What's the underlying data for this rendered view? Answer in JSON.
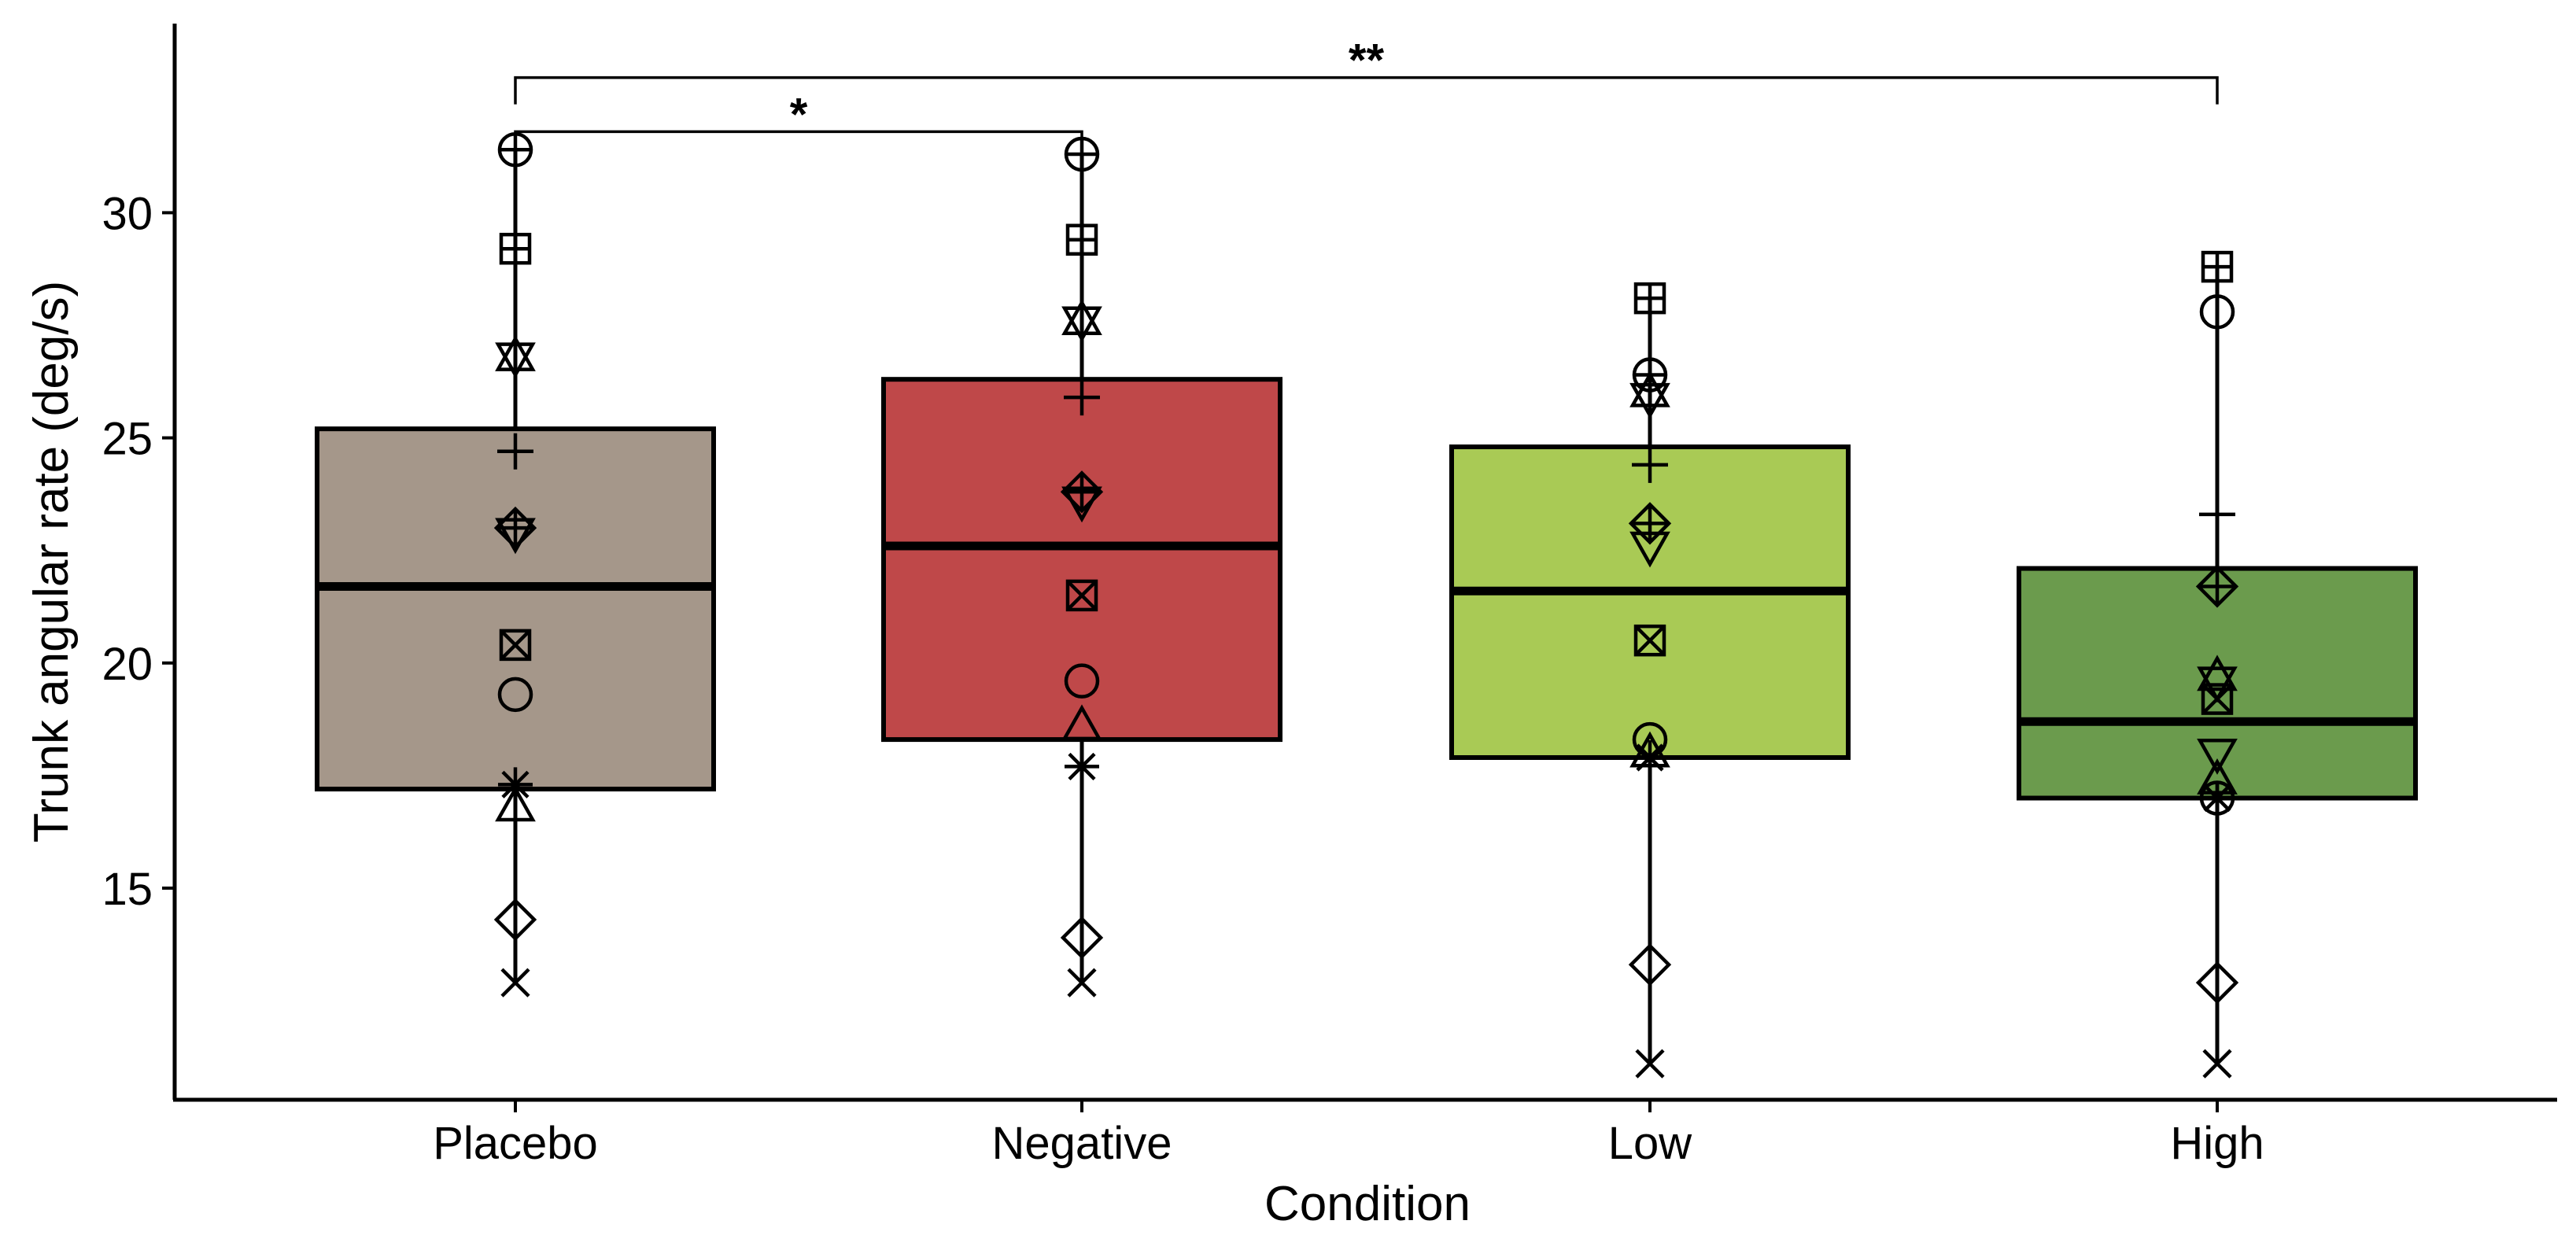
{
  "chart_data": {
    "type": "box",
    "title": "",
    "xlabel": "Condition",
    "ylabel": "Trunk angular rate (deg/s)",
    "ylim": [
      10.3,
      34.2
    ],
    "yticks": [
      15,
      20,
      25,
      30
    ],
    "categories": [
      "Placebo",
      "Negative",
      "Low",
      "High"
    ],
    "colors": [
      "#A5978A",
      "#BF4849",
      "#A9CA55",
      "#6B9B4D"
    ],
    "boxes": [
      {
        "name": "Placebo",
        "whisker_low": 12.9,
        "q1": 17.2,
        "median": 21.7,
        "q3": 25.2,
        "whisker_high": 31.4
      },
      {
        "name": "Negative",
        "whisker_low": 12.9,
        "q1": 18.3,
        "median": 22.6,
        "q3": 26.3,
        "whisker_high": 31.3
      },
      {
        "name": "Low",
        "whisker_low": 11.1,
        "q1": 17.9,
        "median": 21.6,
        "q3": 24.8,
        "whisker_high": 28.1
      },
      {
        "name": "High",
        "whisker_low": 11.1,
        "q1": 17.0,
        "median": 18.7,
        "q3": 22.1,
        "whisker_high": 28.8
      }
    ],
    "participants": [
      {
        "marker": "circle-plus",
        "values": [
          31.4,
          31.3,
          26.4,
          17.0
        ]
      },
      {
        "marker": "square-plus",
        "values": [
          29.2,
          29.4,
          28.1,
          28.8
        ]
      },
      {
        "marker": "triangle-up",
        "values": [
          26.8,
          27.6,
          26.0,
          19.7
        ]
      },
      {
        "marker": "triangle-down",
        "values": [
          26.8,
          27.6,
          25.9,
          19.6
        ]
      },
      {
        "marker": "plus",
        "values": [
          24.7,
          25.9,
          24.4,
          23.3
        ]
      },
      {
        "marker": "diamond-plus",
        "values": [
          23.0,
          23.8,
          23.1,
          21.7
        ]
      },
      {
        "marker": "triangle-down",
        "values": [
          22.9,
          23.6,
          22.6,
          18.0
        ]
      },
      {
        "marker": "square-x",
        "values": [
          20.4,
          21.5,
          20.5,
          19.2
        ]
      },
      {
        "marker": "circle",
        "values": [
          19.3,
          19.6,
          18.3,
          27.8
        ]
      },
      {
        "marker": "triangle-up",
        "values": [
          16.8,
          18.6,
          18.0,
          17.4
        ]
      },
      {
        "marker": "asterisk",
        "values": [
          17.3,
          17.7,
          17.9,
          17.0
        ]
      },
      {
        "marker": "diamond",
        "values": [
          14.3,
          13.9,
          13.3,
          12.9
        ]
      },
      {
        "marker": "x",
        "values": [
          12.9,
          12.9,
          11.1,
          11.1
        ]
      }
    ],
    "significance": [
      {
        "from": "Placebo",
        "to": "Negative",
        "y": 31.8,
        "label": "*"
      },
      {
        "from": "Placebo",
        "to": "High",
        "y": 33.0,
        "label": "**"
      }
    ]
  }
}
